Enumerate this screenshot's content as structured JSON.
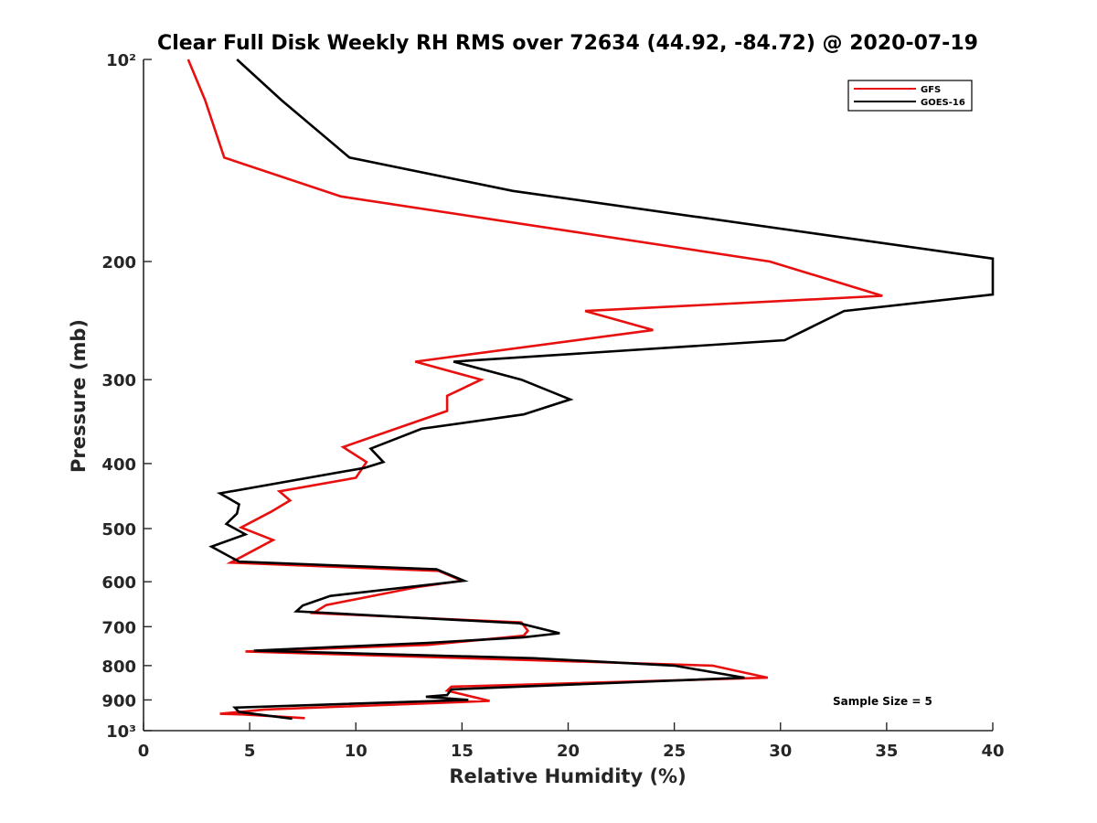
{
  "chart_data": {
    "type": "line",
    "title": "Clear Full Disk Weekly RH RMS over 72634 (44.92, -84.72) @ 2020-07-19",
    "xlabel": "Relative Humidity (%)",
    "ylabel": "Pressure (mb)",
    "xlim": [
      0,
      40
    ],
    "ylim": [
      100,
      1000
    ],
    "y_scale": "log",
    "y_direction": "reversed",
    "x_ticks": [
      0,
      5,
      10,
      15,
      20,
      25,
      30,
      35,
      40
    ],
    "x_tick_labels": [
      "0",
      "5",
      "10",
      "15",
      "20",
      "25",
      "30",
      "35",
      "40"
    ],
    "y_ticks": [
      100,
      200,
      300,
      400,
      500,
      600,
      700,
      800,
      900,
      1000
    ],
    "y_tick_labels": [
      "10²",
      "200",
      "300",
      "400",
      "500",
      "600",
      "700",
      "800",
      "900",
      "10³"
    ],
    "legend_position": "top-right",
    "annotation": "Sample Size = 5",
    "series": [
      {
        "name": "GFS",
        "color": "#e8100f",
        "points": [
          [
            2.1,
            100
          ],
          [
            2.9,
            115
          ],
          [
            3.8,
            140
          ],
          [
            9.3,
            160
          ],
          [
            29.5,
            200
          ],
          [
            34.8,
            225
          ],
          [
            20.8,
            237
          ],
          [
            24.0,
            253
          ],
          [
            12.8,
            282
          ],
          [
            15.9,
            300
          ],
          [
            14.3,
            317
          ],
          [
            14.3,
            334
          ],
          [
            9.4,
            378
          ],
          [
            10.5,
            398
          ],
          [
            10.0,
            420
          ],
          [
            6.4,
            440
          ],
          [
            6.9,
            454
          ],
          [
            6.0,
            472
          ],
          [
            4.6,
            498
          ],
          [
            6.1,
            520
          ],
          [
            4.1,
            562
          ],
          [
            13.9,
            578
          ],
          [
            15.0,
            598
          ],
          [
            12.9,
            611
          ],
          [
            8.6,
            650
          ],
          [
            8.0,
            668
          ],
          [
            17.8,
            690
          ],
          [
            18.1,
            710
          ],
          [
            17.9,
            722
          ],
          [
            13.4,
            745
          ],
          [
            4.8,
            762
          ],
          [
            11.8,
            774
          ],
          [
            26.8,
            800
          ],
          [
            29.4,
            834
          ],
          [
            14.5,
            860
          ],
          [
            14.3,
            872
          ],
          [
            16.3,
            903
          ],
          [
            5.7,
            930
          ],
          [
            3.6,
            944
          ],
          [
            4.7,
            946
          ],
          [
            7.6,
            958
          ]
        ]
      },
      {
        "name": "GOES-16",
        "color": "#000000",
        "points": [
          [
            4.4,
            100
          ],
          [
            6.5,
            115
          ],
          [
            9.7,
            140
          ],
          [
            17.4,
            157
          ],
          [
            40.0,
            198
          ],
          [
            40.0,
            224
          ],
          [
            33.0,
            237
          ],
          [
            30.2,
            262
          ],
          [
            14.6,
            282
          ],
          [
            17.8,
            300
          ],
          [
            20.1,
            321
          ],
          [
            17.9,
            338
          ],
          [
            13.1,
            355
          ],
          [
            10.7,
            380
          ],
          [
            11.3,
            398
          ],
          [
            10.4,
            406
          ],
          [
            3.6,
            443
          ],
          [
            4.5,
            460
          ],
          [
            4.4,
            475
          ],
          [
            3.9,
            492
          ],
          [
            4.8,
            510
          ],
          [
            3.2,
            532
          ],
          [
            4.5,
            560
          ],
          [
            13.8,
            575
          ],
          [
            15.1,
            598
          ],
          [
            8.8,
            630
          ],
          [
            7.5,
            651
          ],
          [
            7.2,
            664
          ],
          [
            17.7,
            692
          ],
          [
            19.6,
            716
          ],
          [
            17.9,
            726
          ],
          [
            13.4,
            740
          ],
          [
            5.2,
            760
          ],
          [
            18.4,
            780
          ],
          [
            25.0,
            800
          ],
          [
            28.3,
            834
          ],
          [
            14.5,
            868
          ],
          [
            14.3,
            885
          ],
          [
            13.3,
            890
          ],
          [
            15.3,
            900
          ],
          [
            4.3,
            924
          ],
          [
            4.5,
            938
          ],
          [
            7.0,
            960
          ]
        ]
      }
    ]
  }
}
